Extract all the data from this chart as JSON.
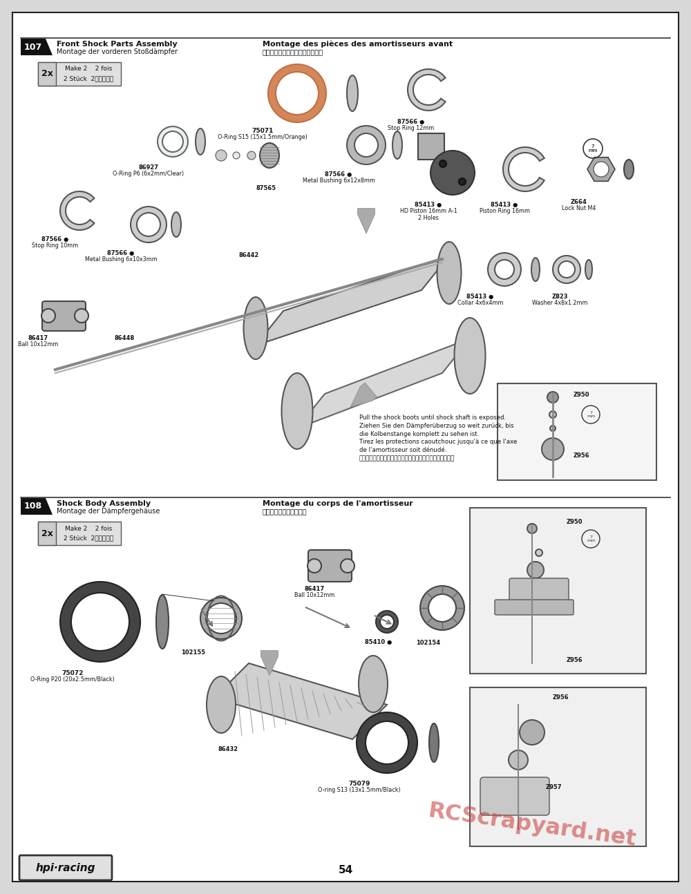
{
  "page_number": "54",
  "bg_outer": "#d8d8d8",
  "bg_page": "#ffffff",
  "border_color": "#222222",
  "sec107": {
    "num": "107",
    "title1_en": "Front Shock Parts Assembly",
    "title1_fr": "Montage des pièces des amortisseurs avant",
    "title2_de": "Montage der vorderen Stoßdämpfer",
    "title2_jp": "フロントショックパーツの組立て"
  },
  "sec108": {
    "num": "108",
    "title1_en": "Shock Body Assembly",
    "title1_fr": "Montage du corps de l'amortisseur",
    "title2_de": "Montage der Dämpfergehäuse",
    "title2_jp": "ショックボディの組立て"
  },
  "make_text": "Make 2   2 fois\n2 Stück  2個作ります",
  "instruction": "Pull the shock boots until shock shaft is exposed.\nZiehen Sie den Dämpferüberzug so weit zurück, bis\ndie Kolbenstange komplett zu sehen ist.\nTirez les protections caoutchouc jusqu'à ce que l'axe\nde l'amortisseur soit dénudé.\nショックエンドが見えるまでショックブーツを脱臼します。",
  "watermark": "RCScrapyard.net",
  "logo": "hpi·racing",
  "colors": {
    "black": "#111111",
    "dark_gray": "#444444",
    "mid_gray": "#888888",
    "light_gray": "#cccccc",
    "very_light_gray": "#e8e8e8",
    "orange": "#d4875a",
    "white": "#ffffff",
    "red_wm": "#cc4444"
  }
}
